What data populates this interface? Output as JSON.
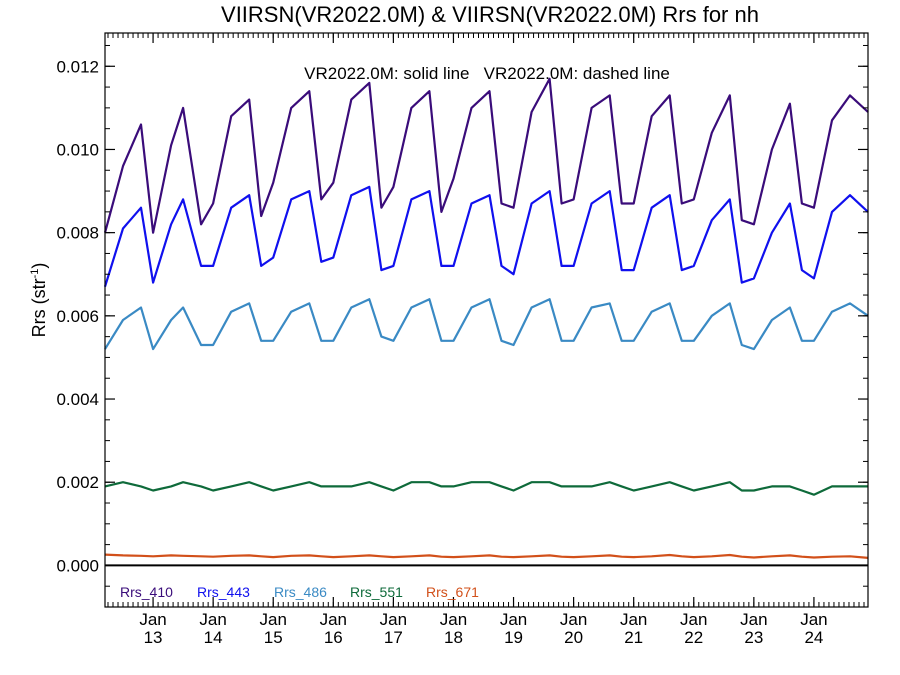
{
  "chart_data": {
    "type": "line",
    "title": "VIIRSN(VR2022.0M) & VIIRSN(VR2022.0M)  Rrs for nh",
    "annotation": "VR2022.0M: solid line   VR2022.0M: dashed line",
    "ylabel_main": "Rrs (str",
    "ylabel_sup": "-1",
    "ylabel_tail": ")",
    "xlabel": "",
    "grid": false,
    "legend_position": "bottom-left",
    "x_unit": "year (fractional)",
    "xlim": [
      2012.2,
      2024.9
    ],
    "ylim": [
      -0.001,
      0.0128
    ],
    "yticks": [
      0.0,
      0.002,
      0.004,
      0.006,
      0.008,
      0.01,
      0.012
    ],
    "ytick_labels": [
      "0.000",
      "0.002",
      "0.004",
      "0.006",
      "0.008",
      "0.010",
      "0.012"
    ],
    "xticks": [
      {
        "x": 2013.0,
        "month": "Jan",
        "year": "13"
      },
      {
        "x": 2014.0,
        "month": "Jan",
        "year": "14"
      },
      {
        "x": 2015.0,
        "month": "Jan",
        "year": "15"
      },
      {
        "x": 2016.0,
        "month": "Jan",
        "year": "16"
      },
      {
        "x": 2017.0,
        "month": "Jan",
        "year": "17"
      },
      {
        "x": 2018.0,
        "month": "Jan",
        "year": "18"
      },
      {
        "x": 2019.0,
        "month": "Jan",
        "year": "19"
      },
      {
        "x": 2020.0,
        "month": "Jan",
        "year": "20"
      },
      {
        "x": 2021.0,
        "month": "Jan",
        "year": "21"
      },
      {
        "x": 2022.0,
        "month": "Jan",
        "year": "22"
      },
      {
        "x": 2023.0,
        "month": "Jan",
        "year": "23"
      },
      {
        "x": 2024.0,
        "month": "Jan",
        "year": "24"
      }
    ],
    "zero_line": 0.0,
    "series": [
      {
        "name": "Rrs_410",
        "color": "#3a0c7a",
        "style": "solid",
        "x": [
          2012.2,
          2012.5,
          2012.8,
          2013.0,
          2013.3,
          2013.5,
          2013.8,
          2014.0,
          2014.3,
          2014.6,
          2014.8,
          2015.0,
          2015.3,
          2015.6,
          2015.8,
          2016.0,
          2016.3,
          2016.6,
          2016.8,
          2017.0,
          2017.3,
          2017.6,
          2017.8,
          2018.0,
          2018.3,
          2018.6,
          2018.8,
          2019.0,
          2019.3,
          2019.6,
          2019.8,
          2020.0,
          2020.3,
          2020.6,
          2020.8,
          2021.0,
          2021.3,
          2021.6,
          2021.8,
          2022.0,
          2022.3,
          2022.6,
          2022.8,
          2023.0,
          2023.3,
          2023.6,
          2023.8,
          2024.0,
          2024.3,
          2024.6,
          2024.9
        ],
        "values": [
          0.008,
          0.0096,
          0.0106,
          0.008,
          0.0101,
          0.011,
          0.0082,
          0.0087,
          0.0108,
          0.0112,
          0.0084,
          0.0092,
          0.011,
          0.0114,
          0.0088,
          0.0092,
          0.0112,
          0.0116,
          0.0086,
          0.0091,
          0.011,
          0.0114,
          0.0085,
          0.0093,
          0.011,
          0.0114,
          0.0087,
          0.0086,
          0.0109,
          0.0117,
          0.0087,
          0.0088,
          0.011,
          0.0113,
          0.0087,
          0.0087,
          0.0108,
          0.0113,
          0.0087,
          0.0088,
          0.0104,
          0.0113,
          0.0083,
          0.0082,
          0.01,
          0.0111,
          0.0087,
          0.0086,
          0.0107,
          0.0113,
          0.0109
        ]
      },
      {
        "name": "Rrs_443",
        "color": "#1010ee",
        "style": "solid",
        "x": [
          2012.2,
          2012.5,
          2012.8,
          2013.0,
          2013.3,
          2013.5,
          2013.8,
          2014.0,
          2014.3,
          2014.6,
          2014.8,
          2015.0,
          2015.3,
          2015.6,
          2015.8,
          2016.0,
          2016.3,
          2016.6,
          2016.8,
          2017.0,
          2017.3,
          2017.6,
          2017.8,
          2018.0,
          2018.3,
          2018.6,
          2018.8,
          2019.0,
          2019.3,
          2019.6,
          2019.8,
          2020.0,
          2020.3,
          2020.6,
          2020.8,
          2021.0,
          2021.3,
          2021.6,
          2021.8,
          2022.0,
          2022.3,
          2022.6,
          2022.8,
          2023.0,
          2023.3,
          2023.6,
          2023.8,
          2024.0,
          2024.3,
          2024.6,
          2024.9
        ],
        "values": [
          0.0067,
          0.0081,
          0.0086,
          0.0068,
          0.0082,
          0.0088,
          0.0072,
          0.0072,
          0.0086,
          0.0089,
          0.0072,
          0.0074,
          0.0088,
          0.009,
          0.0073,
          0.0074,
          0.0089,
          0.0091,
          0.0071,
          0.0072,
          0.0088,
          0.009,
          0.0072,
          0.0072,
          0.0087,
          0.0089,
          0.0072,
          0.007,
          0.0087,
          0.009,
          0.0072,
          0.0072,
          0.0087,
          0.009,
          0.0071,
          0.0071,
          0.0086,
          0.0089,
          0.0071,
          0.0072,
          0.0083,
          0.0088,
          0.0068,
          0.0069,
          0.008,
          0.0087,
          0.0071,
          0.0069,
          0.0085,
          0.0089,
          0.0085
        ]
      },
      {
        "name": "Rrs_486",
        "color": "#3a8ac4",
        "style": "solid",
        "x": [
          2012.2,
          2012.5,
          2012.8,
          2013.0,
          2013.3,
          2013.5,
          2013.8,
          2014.0,
          2014.3,
          2014.6,
          2014.8,
          2015.0,
          2015.3,
          2015.6,
          2015.8,
          2016.0,
          2016.3,
          2016.6,
          2016.8,
          2017.0,
          2017.3,
          2017.6,
          2017.8,
          2018.0,
          2018.3,
          2018.6,
          2018.8,
          2019.0,
          2019.3,
          2019.6,
          2019.8,
          2020.0,
          2020.3,
          2020.6,
          2020.8,
          2021.0,
          2021.3,
          2021.6,
          2021.8,
          2022.0,
          2022.3,
          2022.6,
          2022.8,
          2023.0,
          2023.3,
          2023.6,
          2023.8,
          2024.0,
          2024.3,
          2024.6,
          2024.9
        ],
        "values": [
          0.0052,
          0.0059,
          0.0062,
          0.0052,
          0.0059,
          0.0062,
          0.0053,
          0.0053,
          0.0061,
          0.0063,
          0.0054,
          0.0054,
          0.0061,
          0.0063,
          0.0054,
          0.0054,
          0.0062,
          0.0064,
          0.0055,
          0.0054,
          0.0062,
          0.0064,
          0.0054,
          0.0054,
          0.0062,
          0.0064,
          0.0054,
          0.0053,
          0.0062,
          0.0064,
          0.0054,
          0.0054,
          0.0062,
          0.0063,
          0.0054,
          0.0054,
          0.0061,
          0.0063,
          0.0054,
          0.0054,
          0.006,
          0.0063,
          0.0053,
          0.0052,
          0.0059,
          0.0062,
          0.0054,
          0.0054,
          0.0061,
          0.0063,
          0.006
        ]
      },
      {
        "name": "Rrs_551",
        "color": "#0e6a3a",
        "style": "solid",
        "x": [
          2012.2,
          2012.5,
          2012.8,
          2013.0,
          2013.3,
          2013.5,
          2013.8,
          2014.0,
          2014.3,
          2014.6,
          2014.8,
          2015.0,
          2015.3,
          2015.6,
          2015.8,
          2016.0,
          2016.3,
          2016.6,
          2016.8,
          2017.0,
          2017.3,
          2017.6,
          2017.8,
          2018.0,
          2018.3,
          2018.6,
          2018.8,
          2019.0,
          2019.3,
          2019.6,
          2019.8,
          2020.0,
          2020.3,
          2020.6,
          2020.8,
          2021.0,
          2021.3,
          2021.6,
          2021.8,
          2022.0,
          2022.3,
          2022.6,
          2022.8,
          2023.0,
          2023.3,
          2023.6,
          2023.8,
          2024.0,
          2024.3,
          2024.6,
          2024.9
        ],
        "values": [
          0.0019,
          0.002,
          0.0019,
          0.0018,
          0.0019,
          0.002,
          0.0019,
          0.0018,
          0.0019,
          0.002,
          0.0019,
          0.0018,
          0.0019,
          0.002,
          0.0019,
          0.0019,
          0.0019,
          0.002,
          0.0019,
          0.0018,
          0.002,
          0.002,
          0.0019,
          0.0019,
          0.002,
          0.002,
          0.0019,
          0.0018,
          0.002,
          0.002,
          0.0019,
          0.0019,
          0.0019,
          0.002,
          0.0019,
          0.0018,
          0.0019,
          0.002,
          0.0019,
          0.0018,
          0.0019,
          0.002,
          0.0018,
          0.0018,
          0.0019,
          0.0019,
          0.0018,
          0.0017,
          0.0019,
          0.0019,
          0.0019
        ]
      },
      {
        "name": "Rrs_671",
        "color": "#d2501a",
        "style": "solid",
        "x": [
          2012.2,
          2012.5,
          2012.8,
          2013.0,
          2013.3,
          2013.5,
          2013.8,
          2014.0,
          2014.3,
          2014.6,
          2014.8,
          2015.0,
          2015.3,
          2015.6,
          2015.8,
          2016.0,
          2016.3,
          2016.6,
          2016.8,
          2017.0,
          2017.3,
          2017.6,
          2017.8,
          2018.0,
          2018.3,
          2018.6,
          2018.8,
          2019.0,
          2019.3,
          2019.6,
          2019.8,
          2020.0,
          2020.3,
          2020.6,
          2020.8,
          2021.0,
          2021.3,
          2021.6,
          2021.8,
          2022.0,
          2022.3,
          2022.6,
          2022.8,
          2023.0,
          2023.3,
          2023.6,
          2023.8,
          2024.0,
          2024.3,
          2024.6,
          2024.9
        ],
        "values": [
          0.00026,
          0.00024,
          0.00023,
          0.00022,
          0.00024,
          0.00023,
          0.00022,
          0.00021,
          0.00023,
          0.00024,
          0.00022,
          0.0002,
          0.00023,
          0.00024,
          0.00022,
          0.0002,
          0.00022,
          0.00024,
          0.00022,
          0.0002,
          0.00022,
          0.00024,
          0.00021,
          0.0002,
          0.00022,
          0.00024,
          0.00021,
          0.0002,
          0.00022,
          0.00024,
          0.00021,
          0.0002,
          0.00022,
          0.00024,
          0.00021,
          0.0002,
          0.00022,
          0.00025,
          0.00022,
          0.0002,
          0.00022,
          0.00025,
          0.00021,
          0.00019,
          0.00022,
          0.00024,
          0.00021,
          0.00019,
          0.00021,
          0.00022,
          0.00018
        ]
      }
    ]
  }
}
